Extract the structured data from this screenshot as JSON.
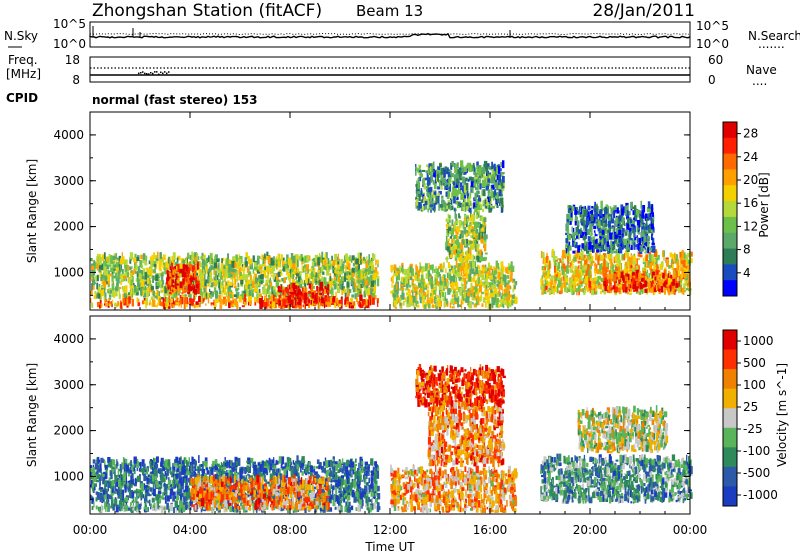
{
  "header": {
    "station": "Zhongshan Station (fitACF)",
    "beam": "Beam 13",
    "date": "28/Jan/2011"
  },
  "panels": {
    "nsky": {
      "left_label": "N.Sky",
      "left_ticks": [
        "10^5",
        "10^0"
      ],
      "right_ticks": [
        "10^5",
        "10^0"
      ],
      "right_label": "N.Search",
      "right_marker": "......."
    },
    "freq": {
      "left_label_1": "Freq.",
      "left_label_2": "[MHz]",
      "left_ticks": [
        "18",
        "8"
      ],
      "right_ticks": [
        "60",
        "0"
      ],
      "right_label": "Nave",
      "right_marker": "...."
    },
    "cpid": {
      "label": "CPID",
      "mode": "normal (fast stereo) 153"
    }
  },
  "chart_data": [
    {
      "type": "heatmap",
      "name": "power",
      "ylabel": "Slant Range [km]",
      "xlabel": "",
      "x_ticks": [
        "00:00",
        "04:00",
        "08:00",
        "12:00",
        "16:00",
        "20:00",
        "00:00"
      ],
      "y_ticks": [
        "1000",
        "2000",
        "3000",
        "4000"
      ],
      "x_range_hours": [
        0,
        24
      ],
      "y_range_km": [
        180,
        4500
      ],
      "colorbar": {
        "label": "Power [dB]",
        "ticks": [
          "4",
          "8",
          "12",
          "16",
          "20",
          "24",
          "28"
        ],
        "colors": [
          "#0000ff",
          "#1a4cc0",
          "#2e7d56",
          "#5aa86a",
          "#6cc04a",
          "#b5d93a",
          "#f5d000",
          "#ffa000",
          "#ff6a00",
          "#ff2000",
          "#e00000"
        ]
      },
      "echo_bands": [
        {
          "t0": 0.0,
          "t1": 11.5,
          "r0": 400,
          "r1": 1300,
          "level": 0.45
        },
        {
          "t0": 0.0,
          "t1": 11.5,
          "r0": 200,
          "r1": 360,
          "level": 0.75
        },
        {
          "t0": 3.0,
          "t1": 4.3,
          "r0": 500,
          "r1": 1100,
          "level": 0.85
        },
        {
          "t0": 7.5,
          "t1": 9.5,
          "r0": 200,
          "r1": 650,
          "level": 0.9
        },
        {
          "t0": 12.0,
          "t1": 17.0,
          "r0": 200,
          "r1": 1100,
          "level": 0.5
        },
        {
          "t0": 14.2,
          "t1": 15.8,
          "r0": 1200,
          "r1": 2200,
          "level": 0.45
        },
        {
          "t0": 13.0,
          "t1": 16.5,
          "r0": 2300,
          "r1": 3300,
          "level": 0.3
        },
        {
          "t0": 18.0,
          "t1": 24.0,
          "r0": 500,
          "r1": 1350,
          "level": 0.6
        },
        {
          "t0": 19.0,
          "t1": 22.5,
          "r0": 1400,
          "r1": 2400,
          "level": 0.2
        },
        {
          "t0": 20.5,
          "t1": 23.5,
          "r0": 550,
          "r1": 900,
          "level": 0.85
        }
      ]
    },
    {
      "type": "heatmap",
      "name": "velocity",
      "ylabel": "Slant Range [km]",
      "xlabel": "Time UT",
      "x_ticks": [
        "00:00",
        "04:00",
        "08:00",
        "12:00",
        "16:00",
        "20:00",
        "00:00"
      ],
      "y_ticks": [
        "1000",
        "2000",
        "3000",
        "4000"
      ],
      "x_range_hours": [
        0,
        24
      ],
      "y_range_km": [
        180,
        4500
      ],
      "colorbar": {
        "label": "Velocity [m s^-1]",
        "ticks": [
          "1000",
          "500",
          "100",
          "25",
          "-25",
          "-100",
          "-500",
          "-1000"
        ],
        "colors": [
          "#1a3cc0",
          "#2a5aa8",
          "#2e8a5a",
          "#5ab45a",
          "#c8c8c8",
          "#f0b000",
          "#f08000",
          "#ff3000",
          "#e00000"
        ]
      },
      "echo_bands": [
        {
          "t0": 0.0,
          "t1": 11.5,
          "r0": 400,
          "r1": 1300,
          "level": 0.2
        },
        {
          "t0": 0.0,
          "t1": 11.5,
          "r0": 200,
          "r1": 360,
          "level": 0.3
        },
        {
          "t0": 4.0,
          "t1": 9.5,
          "r0": 250,
          "r1": 900,
          "level": 0.7
        },
        {
          "t0": 12.0,
          "t1": 17.0,
          "r0": 200,
          "r1": 1100,
          "level": 0.65
        },
        {
          "t0": 13.5,
          "t1": 16.5,
          "r0": 1200,
          "r1": 2500,
          "level": 0.7
        },
        {
          "t0": 13.0,
          "t1": 16.5,
          "r0": 2500,
          "r1": 3300,
          "level": 0.85
        },
        {
          "t0": 18.0,
          "t1": 24.0,
          "r0": 400,
          "r1": 1350,
          "level": 0.3
        },
        {
          "t0": 19.5,
          "t1": 23.0,
          "r0": 1500,
          "r1": 2400,
          "level": 0.5
        }
      ]
    }
  ]
}
